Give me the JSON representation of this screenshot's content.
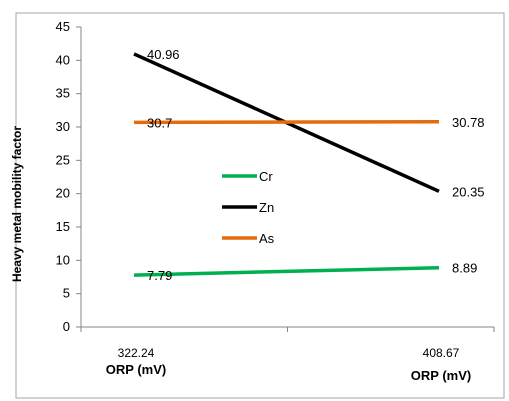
{
  "chart_data": {
    "type": "line",
    "categories": [
      "322.24",
      "408.67"
    ],
    "series": [
      {
        "name": "Cr",
        "values": [
          7.79,
          8.89
        ],
        "color": "#00B050",
        "labels": [
          "7.79",
          "8.89"
        ]
      },
      {
        "name": "Zn",
        "values": [
          40.96,
          20.35
        ],
        "color": "#000000",
        "labels": [
          "40.96",
          "20.35"
        ]
      },
      {
        "name": "As",
        "values": [
          30.7,
          30.78
        ],
        "color": "#E46C0A",
        "labels": [
          "30.7",
          "30.78"
        ]
      }
    ],
    "x_axis_labels": [
      "ORP (mV)",
      "ORP (mV)"
    ],
    "ylabel": "Heavy metal mobility factor",
    "ylim": [
      0,
      45
    ],
    "yticks": [
      "0",
      "5",
      "10",
      "15",
      "20",
      "25",
      "30",
      "35",
      "40",
      "45"
    ],
    "grid": false,
    "legend_position": "inside-center"
  }
}
